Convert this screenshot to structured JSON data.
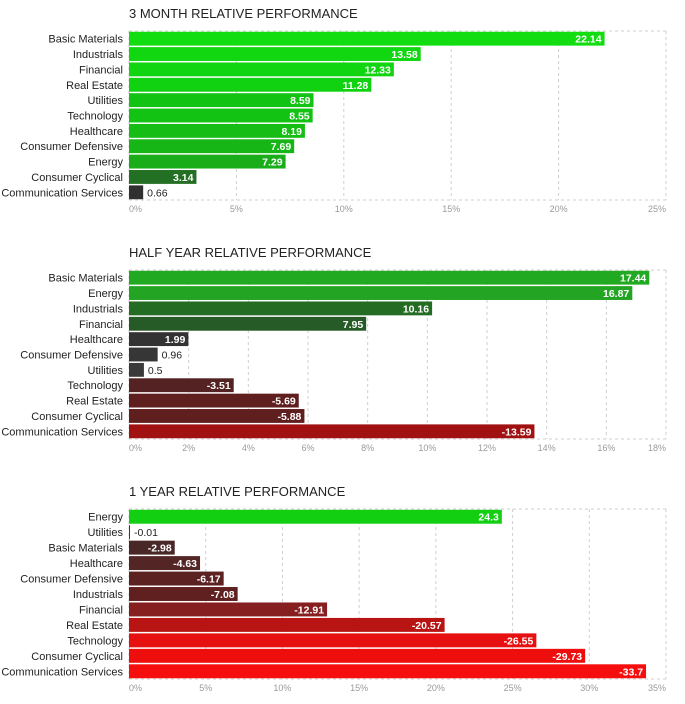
{
  "chart_data": [
    {
      "type": "bar",
      "title": "3 MONTH RELATIVE PERFORMANCE",
      "categories": [
        "Basic Materials",
        "Industrials",
        "Financial",
        "Real Estate",
        "Utilities",
        "Technology",
        "Healthcare",
        "Consumer Defensive",
        "Energy",
        "Consumer Cyclical",
        "Communication Services"
      ],
      "values": [
        22.14,
        13.58,
        12.33,
        11.28,
        8.59,
        8.55,
        8.19,
        7.69,
        7.29,
        3.14,
        0.66
      ],
      "value_labels": [
        "22.14",
        "13.58",
        "12.33",
        "11.28",
        "8.59",
        "8.55",
        "8.19",
        "7.69",
        "7.29",
        "3.14",
        "0.66"
      ],
      "xlim": [
        0,
        25
      ],
      "tick_values": [
        0,
        5,
        10,
        15,
        20,
        25
      ],
      "tick_labels": [
        "0%",
        "5%",
        "10%",
        "15%",
        "20%",
        "25%"
      ],
      "grid": true,
      "colors": [
        "#11dd11",
        "#11d711",
        "#11d511",
        "#11d211",
        "#13c313",
        "#13c313",
        "#15bd15",
        "#17b617",
        "#19ad19",
        "#236f23",
        "#303030"
      ]
    },
    {
      "type": "bar",
      "title": "HALF YEAR RELATIVE PERFORMANCE",
      "categories": [
        "Basic Materials",
        "Energy",
        "Industrials",
        "Financial",
        "Healthcare",
        "Consumer Defensive",
        "Utilities",
        "Technology",
        "Real Estate",
        "Consumer Cyclical",
        "Communication Services"
      ],
      "values": [
        17.44,
        16.87,
        10.16,
        7.95,
        1.99,
        0.96,
        0.5,
        -3.51,
        -5.69,
        -5.88,
        -13.59
      ],
      "value_labels": [
        "17.44",
        "16.87",
        "10.16",
        "7.95",
        "1.99",
        "0.96",
        "0.5",
        "-3.51",
        "-5.69",
        "-5.88",
        "-13.59"
      ],
      "xlim": [
        0,
        18
      ],
      "tick_values": [
        0,
        2,
        4,
        6,
        8,
        10,
        12,
        14,
        16,
        18
      ],
      "tick_labels": [
        "0%",
        "2%",
        "4%",
        "6%",
        "8%",
        "10%",
        "12%",
        "14%",
        "16%",
        "18%"
      ],
      "grid": true,
      "colors": [
        "#22a922",
        "#23a523",
        "#246c24",
        "#265a26",
        "#333333",
        "#363636",
        "#3a3a3a",
        "#542222",
        "#5f1f1f",
        "#601f1f",
        "#a11111"
      ]
    },
    {
      "type": "bar",
      "title": "1 YEAR RELATIVE PERFORMANCE",
      "categories": [
        "Energy",
        "Utilities",
        "Basic Materials",
        "Healthcare",
        "Consumer Defensive",
        "Industrials",
        "Financial",
        "Real Estate",
        "Technology",
        "Consumer Cyclical",
        "Communication Services"
      ],
      "values": [
        24.3,
        -0.01,
        -2.98,
        -4.63,
        -6.17,
        -7.08,
        -12.91,
        -20.57,
        -26.55,
        -29.73,
        -33.7
      ],
      "value_labels": [
        "24.3",
        "-0.01",
        "-2.98",
        "-4.63",
        "-6.17",
        "-7.08",
        "-12.91",
        "-20.57",
        "-26.55",
        "-29.73",
        "-33.7"
      ],
      "xlim": [
        0,
        35
      ],
      "tick_values": [
        0,
        5,
        10,
        15,
        20,
        25,
        30,
        35
      ],
      "tick_labels": [
        "0%",
        "5%",
        "10%",
        "15%",
        "20%",
        "25%",
        "30%",
        "35%"
      ],
      "grid": true,
      "colors": [
        "#12cf12",
        "#3a3a3a",
        "#4a2727",
        "#542525",
        "#5c2222",
        "#612020",
        "#862020",
        "#b91414",
        "#e61010",
        "#ef0e0e",
        "#f40e0e"
      ]
    }
  ]
}
